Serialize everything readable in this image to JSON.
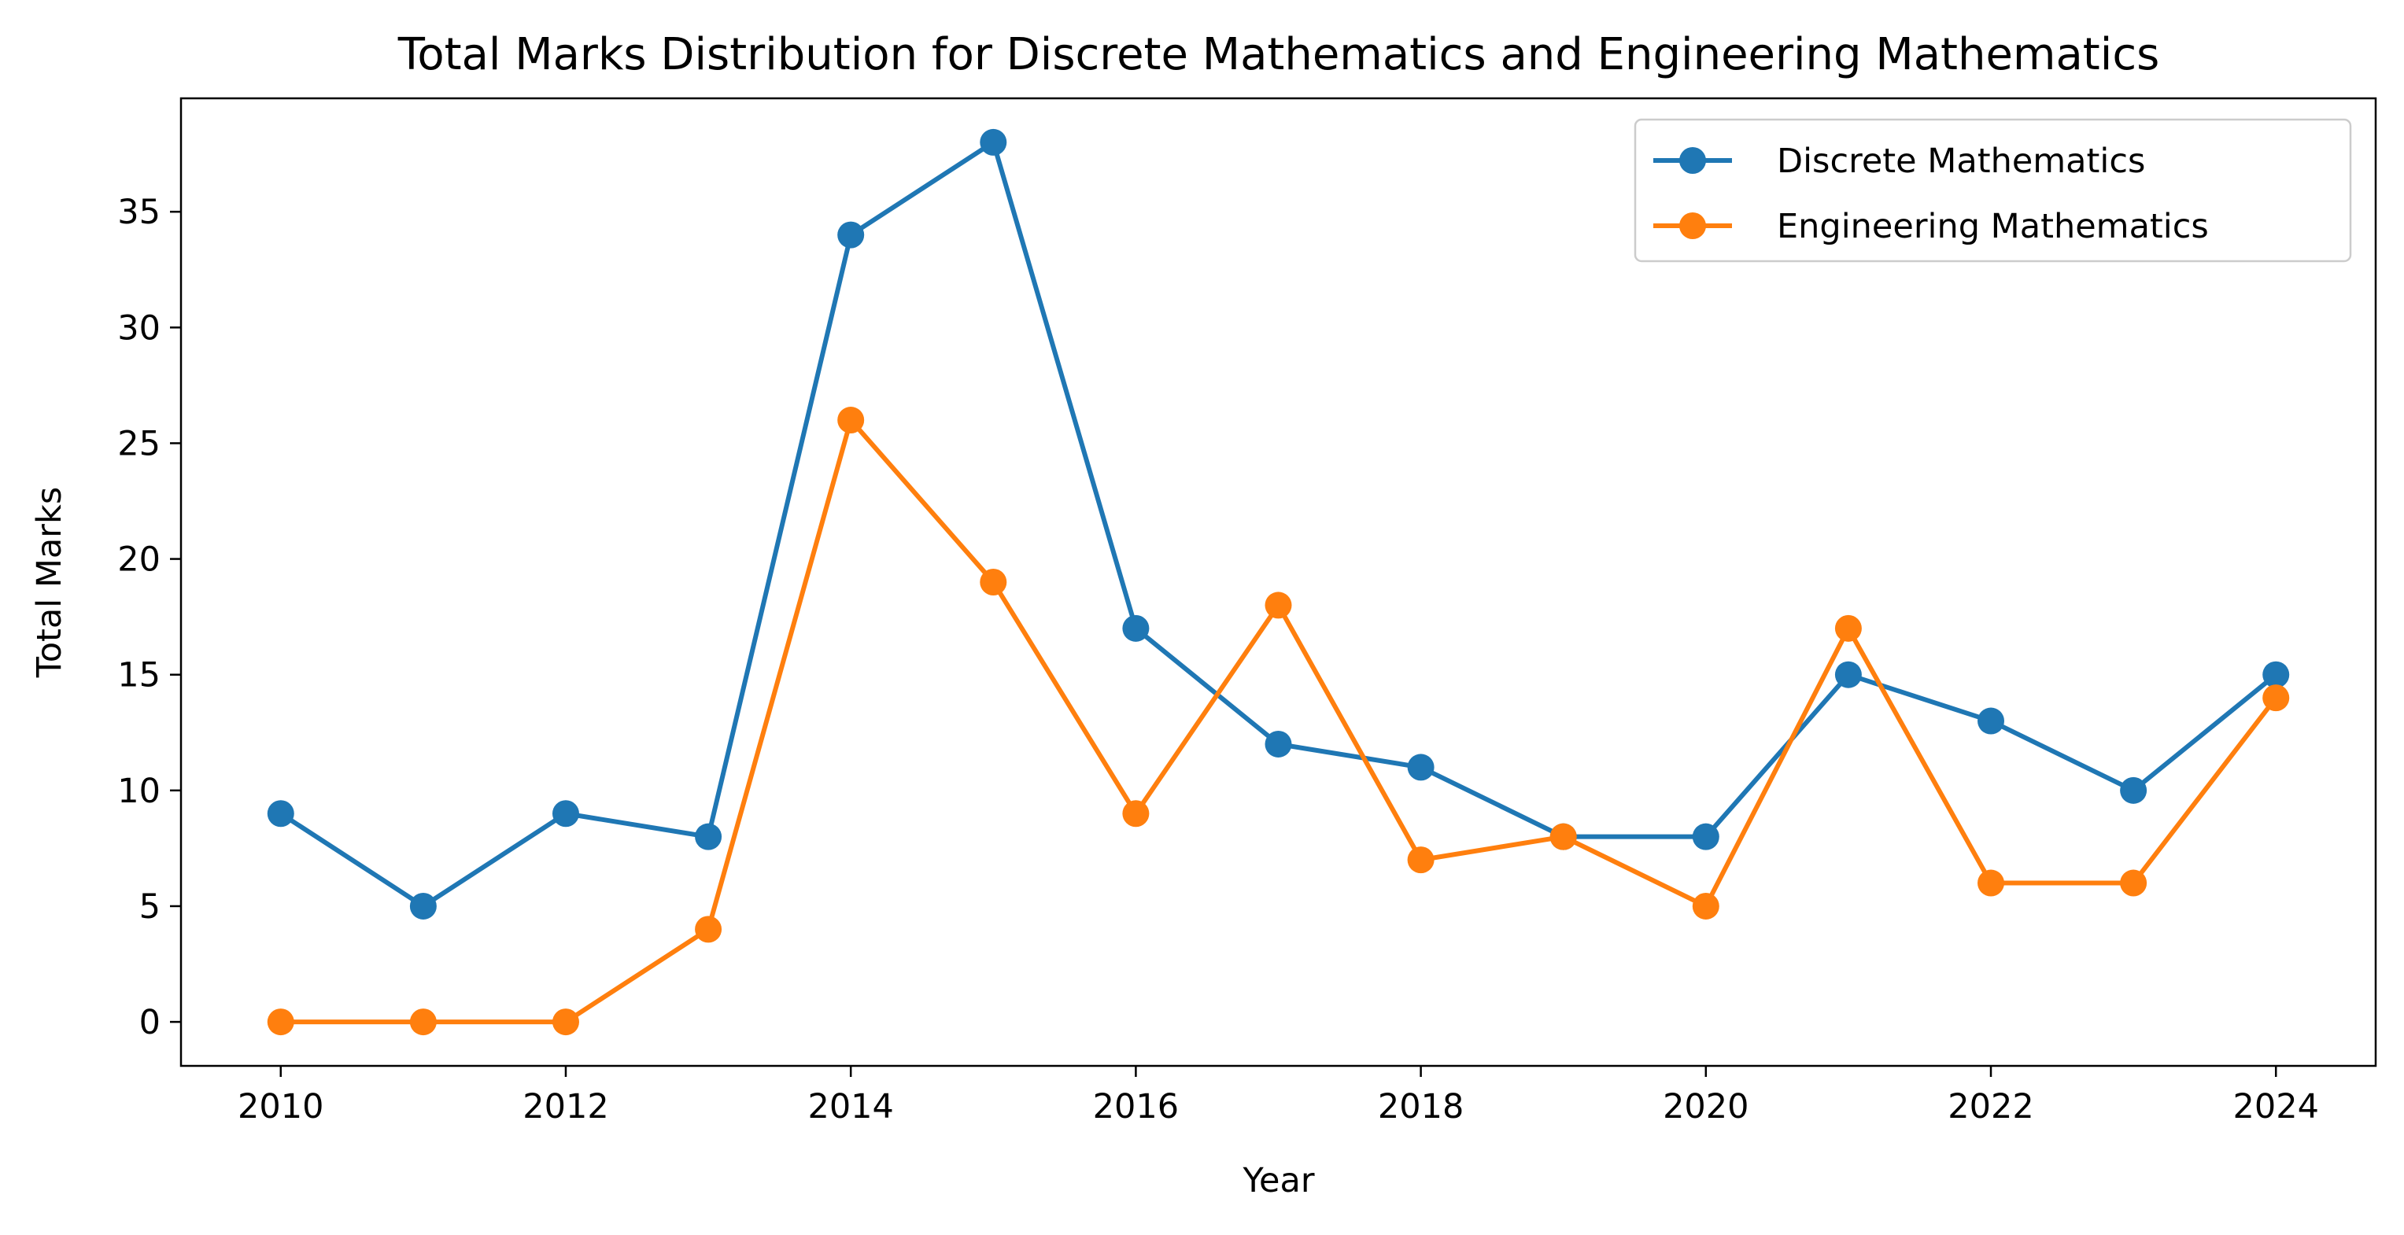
{
  "chart_data": {
    "type": "line",
    "title": "Total Marks Distribution for Discrete Mathematics and Engineering Mathematics",
    "xlabel": "Year",
    "ylabel": "Total Marks",
    "x": [
      2010,
      2011,
      2012,
      2013,
      2014,
      2015,
      2016,
      2017,
      2018,
      2019,
      2020,
      2021,
      2022,
      2023,
      2024
    ],
    "xlim": [
      2009.3,
      2024.7
    ],
    "ylim": [
      -1.9,
      39.9
    ],
    "xticks": [
      2010,
      2012,
      2014,
      2016,
      2018,
      2020,
      2022,
      2024
    ],
    "yticks": [
      0,
      5,
      10,
      15,
      20,
      25,
      30,
      35
    ],
    "xtick_labels": [
      "2010",
      "2012",
      "2014",
      "2016",
      "2018",
      "2020",
      "2022",
      "2024"
    ],
    "ytick_labels": [
      "0",
      "5",
      "10",
      "15",
      "20",
      "25",
      "30",
      "35"
    ],
    "grid": false,
    "legend_position": "top-right",
    "marker": "circle",
    "series": [
      {
        "name": "Discrete Mathematics",
        "color": "#1f77b4",
        "values": [
          9,
          5,
          9,
          8,
          34,
          38,
          17,
          12,
          11,
          8,
          8,
          15,
          13,
          10,
          15
        ]
      },
      {
        "name": "Engineering Mathematics",
        "color": "#ff7f0e",
        "values": [
          0,
          0,
          0,
          4,
          26,
          19,
          9,
          18,
          7,
          8,
          5,
          17,
          6,
          6,
          14
        ]
      }
    ]
  }
}
